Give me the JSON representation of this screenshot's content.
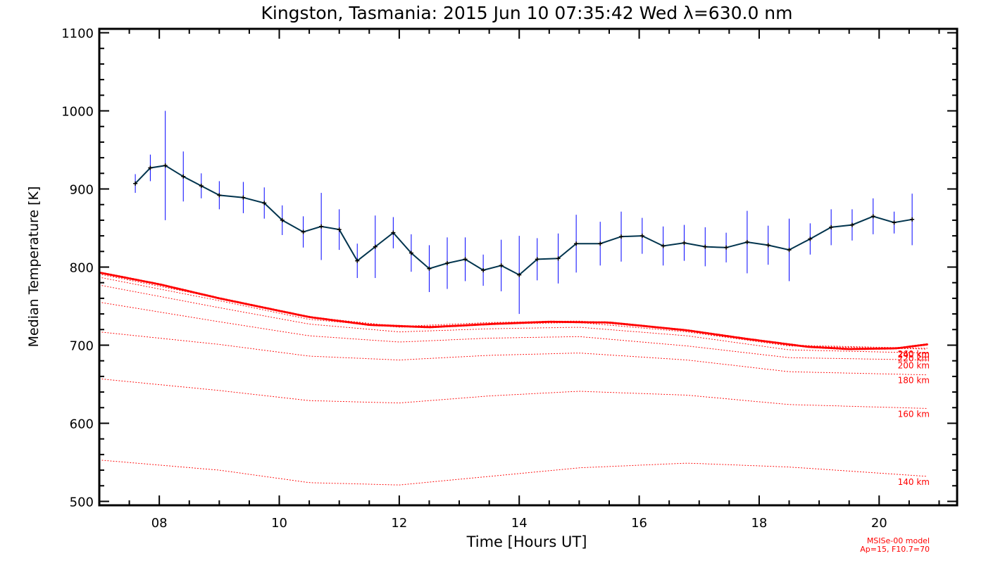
{
  "chart_data": {
    "type": "line",
    "title": "Kingston, Tasmania: 2015 Jun 10 07:35:42 Wed λ=630.0 nm",
    "xlabel": "Time [Hours UT]",
    "ylabel": "Median Temperature [K]",
    "xlim": [
      7.0,
      21.3
    ],
    "ylim": [
      495,
      1105
    ],
    "xticks": [
      8,
      10,
      12,
      14,
      16,
      18,
      20
    ],
    "xtick_labels": [
      "08",
      "10",
      "12",
      "14",
      "16",
      "18",
      "20"
    ],
    "yticks": [
      500,
      600,
      700,
      800,
      900,
      1000,
      1100
    ],
    "ytick_labels": [
      "500",
      "600",
      "700",
      "800",
      "900",
      "1000",
      "1100"
    ],
    "grid": false,
    "colors": {
      "data": "#00334d",
      "error": "#0000ff",
      "model": "#ff0000",
      "axes": "#000000"
    },
    "series": [
      {
        "x": [
          7.6,
          7.85,
          8.1,
          8.4,
          8.7,
          9.0,
          9.4,
          9.75,
          10.05,
          10.4,
          10.7,
          11.0,
          11.3,
          11.6,
          11.9,
          12.2,
          12.5,
          12.8,
          13.1,
          13.4,
          13.7,
          14.0,
          14.3,
          14.65,
          14.95,
          15.35,
          15.7,
          16.05,
          16.4,
          16.75,
          17.1,
          17.45,
          17.8,
          18.15,
          18.5,
          18.85,
          19.2,
          19.55,
          19.9,
          20.25,
          20.55
        ],
        "y": [
          907,
          927,
          930,
          916,
          904,
          892,
          889,
          882,
          860,
          845,
          852,
          848,
          808,
          826,
          844,
          818,
          798,
          805,
          810,
          796,
          802,
          790,
          810,
          811,
          830,
          830,
          839,
          840,
          827,
          831,
          826,
          825,
          832,
          828,
          822,
          836,
          851,
          854,
          865,
          857,
          861
        ],
        "err": [
          12,
          17,
          70,
          32,
          16,
          18,
          20,
          20,
          19,
          20,
          43,
          26,
          22,
          40,
          20,
          24,
          30,
          33,
          28,
          20,
          33,
          50,
          27,
          32,
          37,
          28,
          32,
          23,
          25,
          23,
          25,
          19,
          40,
          25,
          40,
          20,
          23,
          20,
          23,
          14,
          33
        ]
      }
    ],
    "model_curves": [
      {
        "label": "140 km",
        "x": [
          7,
          9,
          10.5,
          12,
          13.5,
          15,
          16.8,
          18.5,
          20.8
        ],
        "y": [
          553,
          540,
          524,
          521,
          532,
          543,
          549,
          544,
          532
        ]
      },
      {
        "label": "160 km",
        "x": [
          7,
          9,
          10.5,
          12,
          13.5,
          15,
          16.8,
          18.5,
          20.8
        ],
        "y": [
          657,
          642,
          629,
          626,
          635,
          641,
          636,
          624,
          619
        ]
      },
      {
        "label": "180 km",
        "x": [
          7,
          9,
          10.5,
          12,
          13.5,
          15,
          16.8,
          18.5,
          20.8
        ],
        "y": [
          717,
          701,
          686,
          681,
          687,
          690,
          681,
          666,
          662
        ]
      },
      {
        "label": "200 km",
        "x": [
          7,
          9,
          10.5,
          12,
          13.5,
          15,
          16.8,
          18.5,
          20.8
        ],
        "y": [
          755,
          730,
          712,
          704,
          709,
          711,
          699,
          684,
          681
        ]
      },
      {
        "label": "220 km",
        "x": [
          7,
          9,
          10.5,
          12,
          13.5,
          15,
          16.8,
          18.5,
          20.8
        ],
        "y": [
          777,
          748,
          727,
          717,
          721,
          723,
          712,
          694,
          690
        ]
      },
      {
        "label": "240 km",
        "x": [
          7,
          9,
          10.5,
          12,
          13.5,
          15,
          16.8,
          18.5,
          20.8
        ],
        "y": [
          787,
          757,
          733,
          723,
          727,
          729,
          717,
          699,
          695
        ]
      },
      {
        "label": "260 km",
        "x": [
          7,
          9,
          10.5,
          12,
          13.5,
          15,
          16.8,
          18.5,
          20.8
        ],
        "y": [
          791,
          760,
          736,
          724,
          729,
          731,
          719,
          700,
          696
        ]
      },
      {
        "label": "",
        "x": [
          7,
          8,
          9,
          10.5,
          11.5,
          12.5,
          13.5,
          14.5,
          15.5,
          16.8,
          17.8,
          18.8,
          19.5,
          20.3,
          20.8
        ],
        "y": [
          793,
          778,
          760,
          736,
          726,
          723,
          727,
          730,
          729,
          719,
          708,
          698,
          695,
          696,
          701
        ]
      }
    ],
    "annotations": [
      "MSISe-00 model",
      "Ap=15, F10.7=70"
    ]
  }
}
